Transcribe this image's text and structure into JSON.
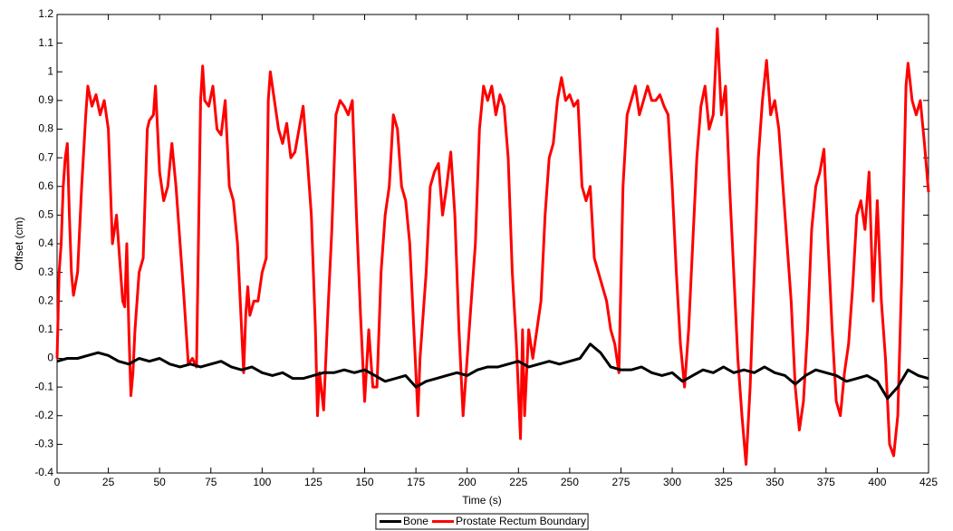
{
  "chart_data": {
    "type": "line",
    "xlabel": "Time (s)",
    "ylabel": "Offset (cm)",
    "xlim": [
      0,
      425
    ],
    "ylim": [
      -0.4,
      1.2
    ],
    "xticks": [
      0,
      25,
      50,
      75,
      100,
      125,
      150,
      175,
      200,
      225,
      250,
      275,
      300,
      325,
      350,
      375,
      400,
      425
    ],
    "yticks": [
      -0.4,
      -0.3,
      -0.2,
      -0.1,
      0,
      0.1,
      0.2,
      0.3,
      0.4,
      0.5,
      0.6,
      0.7,
      0.8,
      0.9,
      1,
      1.1,
      1.2
    ],
    "legend": "bottom",
    "series": [
      {
        "name": "Bone",
        "color": "#000000",
        "x": [
          0,
          5,
          10,
          15,
          20,
          25,
          30,
          35,
          40,
          45,
          50,
          55,
          60,
          65,
          70,
          75,
          80,
          85,
          90,
          95,
          100,
          105,
          110,
          115,
          120,
          125,
          130,
          135,
          140,
          145,
          150,
          155,
          160,
          165,
          170,
          175,
          180,
          185,
          190,
          195,
          200,
          205,
          210,
          215,
          220,
          225,
          230,
          235,
          240,
          245,
          250,
          255,
          260,
          265,
          270,
          275,
          280,
          285,
          290,
          295,
          300,
          305,
          310,
          315,
          320,
          325,
          330,
          335,
          340,
          345,
          350,
          355,
          360,
          365,
          370,
          375,
          380,
          385,
          390,
          395,
          400,
          405,
          410,
          415,
          420,
          425
        ],
        "values": [
          -0.01,
          0,
          0,
          0.01,
          0.02,
          0.01,
          -0.01,
          -0.02,
          0,
          -0.01,
          0,
          -0.02,
          -0.03,
          -0.02,
          -0.03,
          -0.02,
          -0.01,
          -0.03,
          -0.04,
          -0.03,
          -0.05,
          -0.06,
          -0.05,
          -0.07,
          -0.07,
          -0.06,
          -0.05,
          -0.05,
          -0.04,
          -0.05,
          -0.04,
          -0.06,
          -0.08,
          -0.07,
          -0.06,
          -0.1,
          -0.08,
          -0.07,
          -0.06,
          -0.05,
          -0.06,
          -0.04,
          -0.03,
          -0.03,
          -0.02,
          -0.01,
          -0.03,
          -0.02,
          -0.01,
          -0.02,
          -0.01,
          0,
          0.05,
          0.02,
          -0.03,
          -0.04,
          -0.04,
          -0.03,
          -0.05,
          -0.06,
          -0.05,
          -0.08,
          -0.06,
          -0.04,
          -0.05,
          -0.03,
          -0.05,
          -0.04,
          -0.05,
          -0.03,
          -0.05,
          -0.06,
          -0.09,
          -0.06,
          -0.04,
          -0.05,
          -0.06,
          -0.08,
          -0.07,
          -0.06,
          -0.08,
          -0.14,
          -0.1,
          -0.04,
          -0.06,
          -0.07
        ]
      },
      {
        "name": "Prostate Rectum Boundary",
        "color": "#ff0000",
        "x": [
          0,
          1,
          2,
          3,
          4,
          5,
          6,
          7,
          8,
          10,
          12,
          14,
          15,
          17,
          19,
          21,
          23,
          25,
          27,
          29,
          31,
          32,
          33,
          34,
          35,
          36,
          37,
          38,
          39,
          40,
          42,
          44,
          45,
          47,
          48,
          49,
          50,
          52,
          54,
          56,
          58,
          60,
          62,
          64,
          66,
          68,
          70,
          71,
          72,
          74,
          76,
          78,
          80,
          82,
          84,
          86,
          88,
          90,
          91,
          92,
          93,
          94,
          96,
          98,
          100,
          102,
          103,
          104,
          106,
          108,
          110,
          112,
          114,
          116,
          118,
          120,
          122,
          124,
          126,
          127,
          128,
          130,
          132,
          134,
          136,
          138,
          140,
          142,
          144,
          146,
          148,
          150,
          152,
          154,
          156,
          158,
          160,
          162,
          164,
          166,
          168,
          170,
          172,
          174,
          176,
          177,
          180,
          182,
          184,
          186,
          188,
          190,
          192,
          194,
          196,
          198,
          200,
          202,
          204,
          206,
          208,
          210,
          212,
          214,
          216,
          218,
          220,
          222,
          224,
          226,
          227,
          228,
          230,
          232,
          234,
          236,
          238,
          240,
          242,
          244,
          246,
          248,
          250,
          252,
          254,
          256,
          258,
          260,
          262,
          264,
          266,
          268,
          270,
          272,
          274,
          276,
          278,
          280,
          282,
          284,
          286,
          288,
          290,
          292,
          294,
          296,
          298,
          300,
          302,
          304,
          306,
          308,
          310,
          312,
          314,
          316,
          318,
          320,
          322,
          324,
          326,
          328,
          330,
          332,
          334,
          336,
          338,
          340,
          342,
          344,
          346,
          348,
          350,
          352,
          354,
          356,
          358,
          360,
          362,
          364,
          366,
          368,
          370,
          372,
          374,
          376,
          378,
          380,
          382,
          384,
          386,
          388,
          390,
          392,
          394,
          396,
          398,
          400,
          402,
          404,
          406,
          408,
          410,
          412,
          414,
          415,
          417,
          419,
          421,
          423,
          425
        ],
        "values": [
          0,
          0.3,
          0.4,
          0.6,
          0.7,
          0.75,
          0.5,
          0.3,
          0.22,
          0.3,
          0.6,
          0.85,
          0.95,
          0.88,
          0.92,
          0.85,
          0.9,
          0.8,
          0.4,
          0.5,
          0.3,
          0.2,
          0.18,
          0.4,
          0.1,
          -0.13,
          -0.05,
          0.1,
          0.2,
          0.3,
          0.35,
          0.8,
          0.83,
          0.85,
          0.95,
          0.8,
          0.65,
          0.55,
          0.6,
          0.75,
          0.6,
          0.4,
          0.2,
          -0.02,
          0,
          -0.03,
          0.9,
          1.02,
          0.9,
          0.88,
          0.95,
          0.8,
          0.78,
          0.9,
          0.6,
          0.55,
          0.4,
          0.1,
          -0.05,
          0.15,
          0.25,
          0.15,
          0.2,
          0.2,
          0.3,
          0.35,
          0.9,
          1.0,
          0.9,
          0.8,
          0.75,
          0.82,
          0.7,
          0.72,
          0.8,
          0.88,
          0.7,
          0.5,
          0.1,
          -0.2,
          -0.05,
          -0.18,
          0.15,
          0.45,
          0.85,
          0.9,
          0.88,
          0.85,
          0.9,
          0.5,
          0.15,
          -0.15,
          0.1,
          -0.1,
          -0.1,
          0.3,
          0.5,
          0.6,
          0.85,
          0.8,
          0.6,
          0.55,
          0.4,
          0.1,
          -0.2,
          0,
          0.3,
          0.6,
          0.65,
          0.68,
          0.5,
          0.6,
          0.72,
          0.5,
          0.1,
          -0.2,
          0,
          0.2,
          0.4,
          0.8,
          0.95,
          0.9,
          0.95,
          0.85,
          0.92,
          0.88,
          0.7,
          0.3,
          0.05,
          -0.28,
          0.1,
          -0.2,
          0.1,
          0,
          0.1,
          0.2,
          0.5,
          0.7,
          0.75,
          0.9,
          0.98,
          0.9,
          0.92,
          0.88,
          0.9,
          0.6,
          0.55,
          0.6,
          0.35,
          0.3,
          0.25,
          0.2,
          0.1,
          0.05,
          -0.05,
          0.6,
          0.85,
          0.9,
          0.95,
          0.85,
          0.9,
          0.95,
          0.9,
          0.9,
          0.92,
          0.88,
          0.85,
          0.6,
          0.3,
          0.05,
          -0.1,
          0.1,
          0.4,
          0.7,
          0.88,
          0.95,
          0.8,
          0.85,
          1.15,
          0.85,
          0.95,
          0.6,
          0.3,
          0,
          -0.2,
          -0.37,
          -0.1,
          0.3,
          0.7,
          0.9,
          1.04,
          0.85,
          0.9,
          0.8,
          0.6,
          0.4,
          0.2,
          -0.1,
          -0.25,
          -0.15,
          0.1,
          0.45,
          0.6,
          0.65,
          0.73,
          0.4,
          0.1,
          -0.15,
          -0.2,
          -0.05,
          0.05,
          0.25,
          0.5,
          0.55,
          0.45,
          0.65,
          0.2,
          0.55,
          0.2,
          0,
          -0.3,
          -0.34,
          -0.2,
          0.3,
          0.95,
          1.03,
          0.9,
          0.85,
          0.9,
          0.75,
          0.58
        ]
      }
    ]
  }
}
